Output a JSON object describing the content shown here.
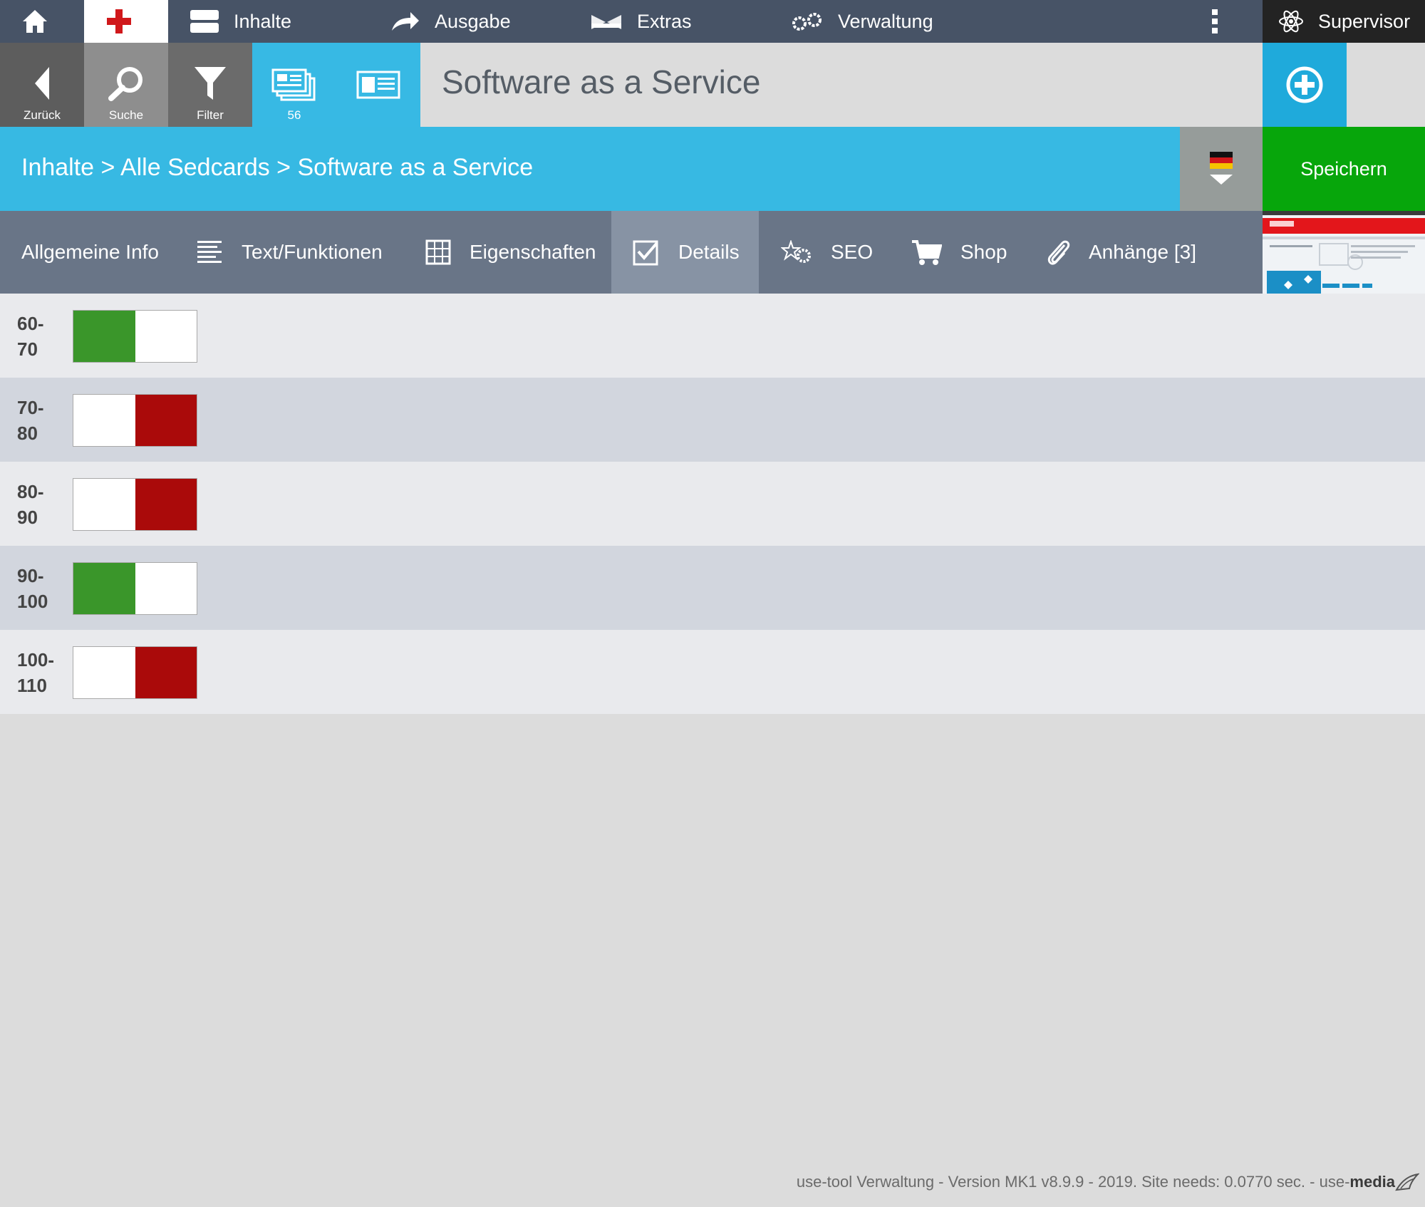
{
  "topnav": {
    "items": [
      {
        "label": "Inhalte",
        "icon": "database-icon"
      },
      {
        "label": "Ausgabe",
        "icon": "share-arrow-icon"
      },
      {
        "label": "Extras",
        "icon": "bridge-icon"
      },
      {
        "label": "Verwaltung",
        "icon": "gears-icon"
      }
    ],
    "user": "Supervisor"
  },
  "toolbar": {
    "back_label": "Zurück",
    "search_label": "Suche",
    "filter_label": "Filter",
    "list_count": "56",
    "title": "Software as a Service"
  },
  "breadcrumb": "Inhalte > Alle Sedcards > Software as a Service",
  "save_label": "Speichern",
  "tabs": [
    {
      "label": "Allgemeine Info"
    },
    {
      "label": "Text/Funktionen"
    },
    {
      "label": "Eigenschaften"
    },
    {
      "label": "Details",
      "active": true
    },
    {
      "label": "SEO"
    },
    {
      "label": "Shop"
    },
    {
      "label": "Anhänge [3]"
    }
  ],
  "rows": [
    {
      "label": "60-70",
      "state": "on"
    },
    {
      "label": "70-80",
      "state": "off"
    },
    {
      "label": "80-90",
      "state": "off"
    },
    {
      "label": "90-100",
      "state": "on"
    },
    {
      "label": "100-110",
      "state": "off"
    }
  ],
  "colors": {
    "on": "#3a962a",
    "off": "#aa0a0a",
    "accent": "#37b9e3",
    "save": "#07a60b"
  },
  "footer": {
    "text": "use-tool Verwaltung - Version MK1 v8.9.9 - 2019. Site needs: 0.0770 sec. - use-",
    "brand": "media"
  }
}
